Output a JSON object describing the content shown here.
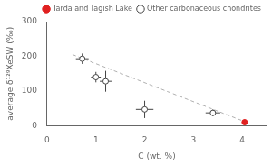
{
  "chart_data": {
    "type": "scatter",
    "xlabel": "C (wt. %)",
    "ylabel": "average δ¹²⁹XeSW (‰)",
    "xlim": [
      0,
      4.5
    ],
    "ylim": [
      0,
      300
    ],
    "xticks": [
      0,
      1,
      2,
      3,
      4
    ],
    "yticks": [
      0,
      100,
      200,
      300
    ],
    "grid": false,
    "legend": "upper right",
    "series": [
      {
        "type": "line",
        "line_style": "dashed",
        "color": "#b0b0b0",
        "x": [
          0.52,
          4.12
        ],
        "values": [
          205,
          8
        ]
      },
      {
        "name": "Other carbonaceous chondrites",
        "marker": "open-circle",
        "color": "#444444",
        "x": [
          0.72,
          1.0,
          1.2,
          2.0,
          3.4
        ],
        "values": [
          193,
          140,
          128,
          47,
          37
        ],
        "xerr": [
          0.13,
          0.1,
          0.12,
          0.18,
          0.15
        ],
        "yerr": [
          15,
          15,
          30,
          25,
          10
        ]
      },
      {
        "name": "Tarda and Tagish Lake",
        "marker": "circle",
        "color": "#e02020",
        "x": [
          4.05
        ],
        "values": [
          10
        ],
        "xerr": [
          0.05
        ],
        "yerr": [
          8
        ]
      }
    ]
  }
}
